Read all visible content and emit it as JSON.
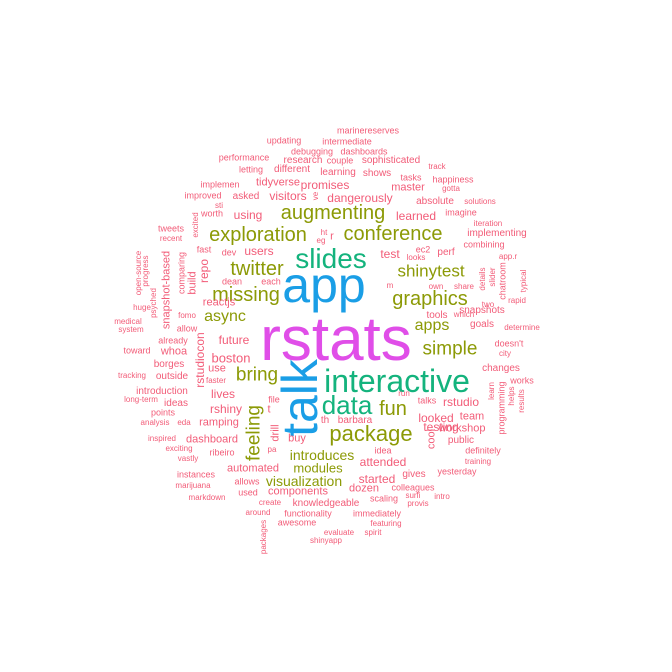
{
  "colors": {
    "c1": "#f25c78",
    "c2": "#8c9a06",
    "c3": "#14b37d",
    "c4": "#1a9ee6",
    "c5": "#e04ee8"
  },
  "words": [
    {
      "text": "rstats",
      "color": "c5"
    },
    {
      "text": "app",
      "color": "c4"
    },
    {
      "text": "talk",
      "color": "c4"
    },
    {
      "text": "interactive",
      "color": "c3"
    },
    {
      "text": "slides",
      "color": "c3"
    },
    {
      "text": "data",
      "color": "c3"
    },
    {
      "text": "package",
      "color": "c2"
    },
    {
      "text": "conference",
      "color": "c2"
    },
    {
      "text": "augmenting",
      "color": "c2"
    },
    {
      "text": "exploration",
      "color": "c2"
    },
    {
      "text": "graphics",
      "color": "c2"
    },
    {
      "text": "twitter",
      "color": "c2"
    },
    {
      "text": "missing",
      "color": "c2"
    },
    {
      "text": "shinytest",
      "color": "c2"
    },
    {
      "text": "simple",
      "color": "c2"
    },
    {
      "text": "bring",
      "color": "c2"
    },
    {
      "text": "fun",
      "color": "c2"
    },
    {
      "text": "feeling",
      "color": "c2"
    },
    {
      "text": "async",
      "color": "c2"
    },
    {
      "text": "apps",
      "color": "c2"
    },
    {
      "text": "introduces",
      "color": "c2"
    },
    {
      "text": "visualization",
      "color": "c2"
    },
    {
      "text": "modules",
      "color": "c2"
    },
    {
      "text": "boston",
      "color": "c1"
    },
    {
      "text": "promises",
      "color": "c1"
    },
    {
      "text": "dangerously",
      "color": "c1"
    },
    {
      "text": "test",
      "color": "c1"
    },
    {
      "text": "users",
      "color": "c1"
    },
    {
      "text": "future",
      "color": "c1"
    },
    {
      "text": "rstudiocon",
      "color": "c1"
    },
    {
      "text": "rstudio",
      "color": "c1"
    },
    {
      "text": "learned",
      "color": "c1"
    },
    {
      "text": "looked",
      "color": "c1"
    },
    {
      "text": "testing",
      "color": "c1"
    },
    {
      "text": "workshop",
      "color": "c1"
    },
    {
      "text": "started",
      "color": "c1"
    },
    {
      "text": "attended",
      "color": "c1"
    },
    {
      "text": "dozen",
      "color": "c1"
    },
    {
      "text": "automated",
      "color": "c1"
    },
    {
      "text": "components",
      "color": "c1"
    },
    {
      "text": "ramping",
      "color": "c1"
    },
    {
      "text": "dashboard",
      "color": "c1"
    },
    {
      "text": "lives",
      "color": "c1"
    },
    {
      "text": "rshiny",
      "color": "c1"
    },
    {
      "text": "visitors",
      "color": "c1"
    },
    {
      "text": "using",
      "color": "c1"
    },
    {
      "text": "tidyverse",
      "color": "c1"
    },
    {
      "text": "master",
      "color": "c1"
    },
    {
      "text": "sophisticated",
      "color": "c1"
    },
    {
      "text": "learning",
      "color": "c1"
    },
    {
      "text": "shows",
      "color": "c1"
    },
    {
      "text": "different",
      "color": "c1"
    },
    {
      "text": "research",
      "color": "c1"
    },
    {
      "text": "couple",
      "color": "c1"
    },
    {
      "text": "debugging",
      "color": "c1"
    },
    {
      "text": "dashboards",
      "color": "c1"
    },
    {
      "text": "intermediate",
      "color": "c1"
    },
    {
      "text": "updating",
      "color": "c1"
    },
    {
      "text": "marinereserves",
      "color": "c1"
    },
    {
      "text": "performance",
      "color": "c1"
    },
    {
      "text": "letting",
      "color": "c1"
    },
    {
      "text": "tasks",
      "color": "c1"
    },
    {
      "text": "happiness",
      "color": "c1"
    },
    {
      "text": "track",
      "color": "c1"
    },
    {
      "text": "gotta",
      "color": "c1"
    },
    {
      "text": "absolute",
      "color": "c1"
    },
    {
      "text": "solutions",
      "color": "c1"
    },
    {
      "text": "imagine",
      "color": "c1"
    },
    {
      "text": "iteration",
      "color": "c1"
    },
    {
      "text": "implementing",
      "color": "c1"
    },
    {
      "text": "combining",
      "color": "c1"
    },
    {
      "text": "implemen",
      "color": "c1"
    },
    {
      "text": "improved",
      "color": "c1"
    },
    {
      "text": "asked",
      "color": "c1"
    },
    {
      "text": "worth",
      "color": "c1"
    },
    {
      "text": "tweets",
      "color": "c1"
    },
    {
      "text": "recent",
      "color": "c1"
    },
    {
      "text": "fast",
      "color": "c1"
    },
    {
      "text": "dev",
      "color": "c1"
    },
    {
      "text": "dean",
      "color": "c1"
    },
    {
      "text": "each",
      "color": "c1"
    },
    {
      "text": "reactjs",
      "color": "c1"
    },
    {
      "text": "snapshot-based",
      "color": "c1"
    },
    {
      "text": "comparing",
      "color": "c1"
    },
    {
      "text": "build",
      "color": "c1"
    },
    {
      "text": "repo",
      "color": "c1"
    },
    {
      "text": "fomo",
      "color": "c1"
    },
    {
      "text": "psyched",
      "color": "c1"
    },
    {
      "text": "progress",
      "color": "c1"
    },
    {
      "text": "open-source",
      "color": "c1"
    },
    {
      "text": "huge",
      "color": "c1"
    },
    {
      "text": "system",
      "color": "c1"
    },
    {
      "text": "medical",
      "color": "c1"
    },
    {
      "text": "allow",
      "color": "c1"
    },
    {
      "text": "already",
      "color": "c1"
    },
    {
      "text": "toward",
      "color": "c1"
    },
    {
      "text": "whoa",
      "color": "c1"
    },
    {
      "text": "use",
      "color": "c1"
    },
    {
      "text": "borges",
      "color": "c1"
    },
    {
      "text": "outside",
      "color": "c1"
    },
    {
      "text": "tracking",
      "color": "c1"
    },
    {
      "text": "introduction",
      "color": "c1"
    },
    {
      "text": "faster",
      "color": "c1"
    },
    {
      "text": "long-term",
      "color": "c1"
    },
    {
      "text": "ideas",
      "color": "c1"
    },
    {
      "text": "points",
      "color": "c1"
    },
    {
      "text": "analysis",
      "color": "c1"
    },
    {
      "text": "eda",
      "color": "c1"
    },
    {
      "text": "inspired",
      "color": "c1"
    },
    {
      "text": "ribeiro",
      "color": "c1"
    },
    {
      "text": "exciting",
      "color": "c1"
    },
    {
      "text": "vastly",
      "color": "c1"
    },
    {
      "text": "instances",
      "color": "c1"
    },
    {
      "text": "marijuana",
      "color": "c1"
    },
    {
      "text": "markdown",
      "color": "c1"
    },
    {
      "text": "allows",
      "color": "c1"
    },
    {
      "text": "used",
      "color": "c1"
    },
    {
      "text": "create",
      "color": "c1"
    },
    {
      "text": "around",
      "color": "c1"
    },
    {
      "text": "packages",
      "color": "c1"
    },
    {
      "text": "awesome",
      "color": "c1"
    },
    {
      "text": "evaluate",
      "color": "c1"
    },
    {
      "text": "shinyapp",
      "color": "c1"
    },
    {
      "text": "spirit",
      "color": "c1"
    },
    {
      "text": "featuring",
      "color": "c1"
    },
    {
      "text": "immediately",
      "color": "c1"
    },
    {
      "text": "functionality",
      "color": "c1"
    },
    {
      "text": "knowledgeable",
      "color": "c1"
    },
    {
      "text": "scaling",
      "color": "c1"
    },
    {
      "text": "colleagues",
      "color": "c1"
    },
    {
      "text": "provis",
      "color": "c1"
    },
    {
      "text": "surfi",
      "color": "c1"
    },
    {
      "text": "intro",
      "color": "c1"
    },
    {
      "text": "gives",
      "color": "c1"
    },
    {
      "text": "idea",
      "color": "c1"
    },
    {
      "text": "yesterday",
      "color": "c1"
    },
    {
      "text": "training",
      "color": "c1"
    },
    {
      "text": "definitely",
      "color": "c1"
    },
    {
      "text": "public",
      "color": "c1"
    },
    {
      "text": "team",
      "color": "c1"
    },
    {
      "text": "cool",
      "color": "c1"
    },
    {
      "text": "talks",
      "color": "c1"
    },
    {
      "text": "run",
      "color": "c1"
    },
    {
      "text": "th",
      "color": "c1"
    },
    {
      "text": "barbara",
      "color": "c1"
    },
    {
      "text": "buy",
      "color": "c1"
    },
    {
      "text": "drill",
      "color": "c1"
    },
    {
      "text": "t",
      "color": "c1"
    },
    {
      "text": "file",
      "color": "c1"
    },
    {
      "text": "pa",
      "color": "c1"
    },
    {
      "text": "programming",
      "color": "c1"
    },
    {
      "text": "changes",
      "color": "c1"
    },
    {
      "text": "works",
      "color": "c1"
    },
    {
      "text": "helps",
      "color": "c1"
    },
    {
      "text": "results",
      "color": "c1"
    },
    {
      "text": "doesn't",
      "color": "c1"
    },
    {
      "text": "city",
      "color": "c1"
    },
    {
      "text": "determine",
      "color": "c1"
    },
    {
      "text": "goals",
      "color": "c1"
    },
    {
      "text": "snapshots",
      "color": "c1"
    },
    {
      "text": "tools",
      "color": "c1"
    },
    {
      "text": "which",
      "color": "c1"
    },
    {
      "text": "share",
      "color": "c1"
    },
    {
      "text": "own",
      "color": "c1"
    },
    {
      "text": "looks",
      "color": "c1"
    },
    {
      "text": "perf",
      "color": "c1"
    },
    {
      "text": "ec2",
      "color": "c1"
    },
    {
      "text": "m",
      "color": "c1"
    },
    {
      "text": "two",
      "color": "c1"
    },
    {
      "text": "rapid",
      "color": "c1"
    },
    {
      "text": "typical",
      "color": "c1"
    },
    {
      "text": "details",
      "color": "c1"
    },
    {
      "text": "slider",
      "color": "c1"
    },
    {
      "text": "chatroom",
      "color": "c1"
    },
    {
      "text": "app.r",
      "color": "c1"
    },
    {
      "text": "learn",
      "color": "c1"
    },
    {
      "text": "ht",
      "color": "c1"
    },
    {
      "text": "eg",
      "color": "c1"
    },
    {
      "text": "r",
      "color": "c1"
    },
    {
      "text": "ve",
      "color": "c1"
    },
    {
      "text": "sti",
      "color": "c1"
    },
    {
      "text": "excited",
      "color": "c1"
    }
  ]
}
